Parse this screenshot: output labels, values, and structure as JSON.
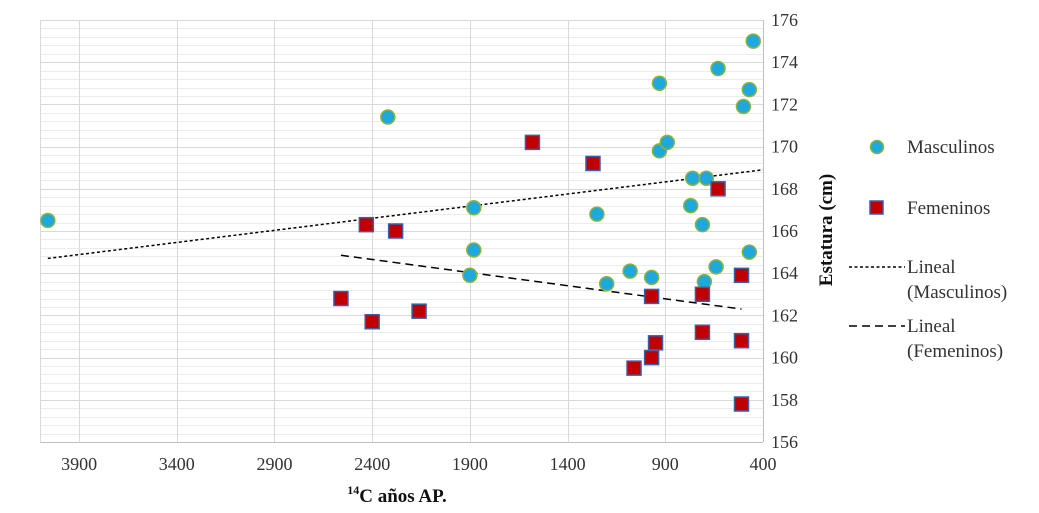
{
  "chart_data": {
    "type": "scatter",
    "title": "",
    "xlabel": {
      "sup": "14",
      "text": "C años AP."
    },
    "ylabel": "Estatura (cm)",
    "xlim": [
      4100,
      400
    ],
    "x_reversed": true,
    "x_ticks": [
      3900,
      3400,
      2900,
      2400,
      1900,
      1400,
      900,
      400
    ],
    "ylim": [
      156,
      176
    ],
    "y_ticks": [
      156,
      158,
      160,
      162,
      164,
      166,
      168,
      170,
      172,
      174,
      176
    ],
    "y_axis_side": "right",
    "grid": true,
    "legend_position": "right",
    "colors": {
      "masculinos_fill": "#1ea8dc",
      "masculinos_edge": "#8cb43c",
      "femeninos_fill": "#c00000",
      "femeninos_edge": "#3a5fa8",
      "trend": "#000000",
      "grid": "#d9d9d9"
    },
    "series": [
      {
        "name": "Masculinos",
        "marker": "circle",
        "points": [
          [
            4060,
            166.5
          ],
          [
            2320,
            171.4
          ],
          [
            1880,
            167.1
          ],
          [
            1880,
            165.1
          ],
          [
            1900,
            163.9
          ],
          [
            1250,
            166.8
          ],
          [
            1200,
            163.5
          ],
          [
            1080,
            164.1
          ],
          [
            970,
            163.8
          ],
          [
            930,
            173.0
          ],
          [
            930,
            169.8
          ],
          [
            890,
            170.2
          ],
          [
            760,
            168.5
          ],
          [
            690,
            168.5
          ],
          [
            770,
            167.2
          ],
          [
            710,
            166.3
          ],
          [
            630,
            173.7
          ],
          [
            450,
            175.0
          ],
          [
            470,
            172.7
          ],
          [
            500,
            171.9
          ],
          [
            470,
            165.0
          ],
          [
            640,
            164.3
          ],
          [
            700,
            163.6
          ]
        ]
      },
      {
        "name": "Femeninos",
        "marker": "square",
        "points": [
          [
            2430,
            166.3
          ],
          [
            2280,
            166.0
          ],
          [
            1580,
            170.2
          ],
          [
            1270,
            169.2
          ],
          [
            2560,
            162.8
          ],
          [
            2400,
            161.7
          ],
          [
            2160,
            162.2
          ],
          [
            1060,
            159.5
          ],
          [
            970,
            160.0
          ],
          [
            950,
            160.7
          ],
          [
            970,
            162.9
          ],
          [
            710,
            161.2
          ],
          [
            710,
            163.0
          ],
          [
            630,
            168.0
          ],
          [
            510,
            163.9
          ],
          [
            510,
            160.8
          ],
          [
            510,
            157.8
          ]
        ]
      }
    ],
    "trendlines": [
      {
        "name": "Lineal (Masculinos)",
        "series": "Masculinos",
        "dash": "short",
        "from": [
          4060,
          164.7
        ],
        "to": [
          400,
          168.9
        ]
      },
      {
        "name": "Lineal (Femeninos)",
        "series": "Femeninos",
        "dash": "long",
        "from": [
          2560,
          164.85
        ],
        "to": [
          510,
          162.3
        ]
      }
    ],
    "legend": [
      {
        "marker": "circle",
        "label": "Masculinos"
      },
      {
        "marker": "square",
        "label": "Femeninos"
      },
      {
        "marker": "short-dash",
        "label_lines": [
          "Lineal",
          "(Masculinos)"
        ]
      },
      {
        "marker": "long-dash",
        "label_lines": [
          "Lineal",
          "(Femeninos)"
        ]
      }
    ]
  }
}
